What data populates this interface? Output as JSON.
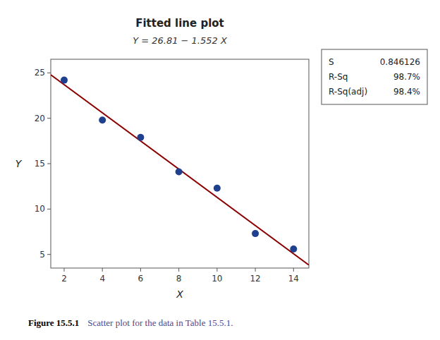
{
  "chart_data": {
    "type": "scatter",
    "title": "Fitted line plot",
    "subtitle": "Y = 26.81 − 1.552 X",
    "xlabel": "X",
    "ylabel": "Y",
    "series": [
      {
        "type": "scatter",
        "color": "#1f3f8f",
        "x": [
          2,
          4,
          6,
          8,
          10,
          12,
          14
        ],
        "values": [
          24.2,
          19.8,
          17.9,
          14.1,
          12.3,
          7.3,
          5.6
        ]
      },
      {
        "type": "line",
        "color": "#8b0000",
        "x": [
          1.3,
          14.8
        ],
        "values": [
          24.7924,
          3.8404
        ]
      }
    ],
    "xlim": [
      1.3,
      14.8
    ],
    "ylim": [
      3.5,
      26.5
    ],
    "xticks": [
      2,
      4,
      6,
      8,
      10,
      12,
      14
    ],
    "yticks": [
      5,
      10,
      15,
      20,
      25
    ],
    "grid": false,
    "annotations": [
      {
        "label": "S",
        "text": "0.846126"
      },
      {
        "label": "R-Sq",
        "text": "98.7%"
      },
      {
        "label": "R-Sq(adj)",
        "text": "98.4%"
      }
    ],
    "caption": {
      "label": "Figure 15.5.1",
      "text": "Scatter plot for the data in Table 15.5.1.",
      "color": "#4a4a8a"
    }
  }
}
